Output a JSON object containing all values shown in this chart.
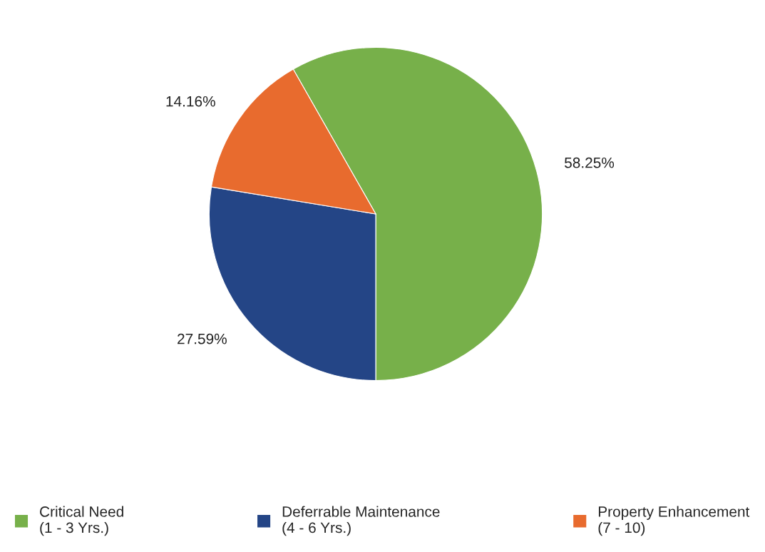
{
  "chart_data": {
    "type": "pie",
    "categories": [
      "Critical Need\n(1 - 3 Yrs.)",
      "Deferrable Maintenance\n(4 - 6 Yrs.)",
      "Property Enhancement\n(7 - 10)"
    ],
    "values": [
      58.25,
      27.59,
      14.16
    ],
    "colors": [
      "#77b04a",
      "#244586",
      "#e86b2e"
    ],
    "value_labels": [
      "58.25%",
      "27.59%",
      "14.16%"
    ],
    "legend": "bottom"
  }
}
